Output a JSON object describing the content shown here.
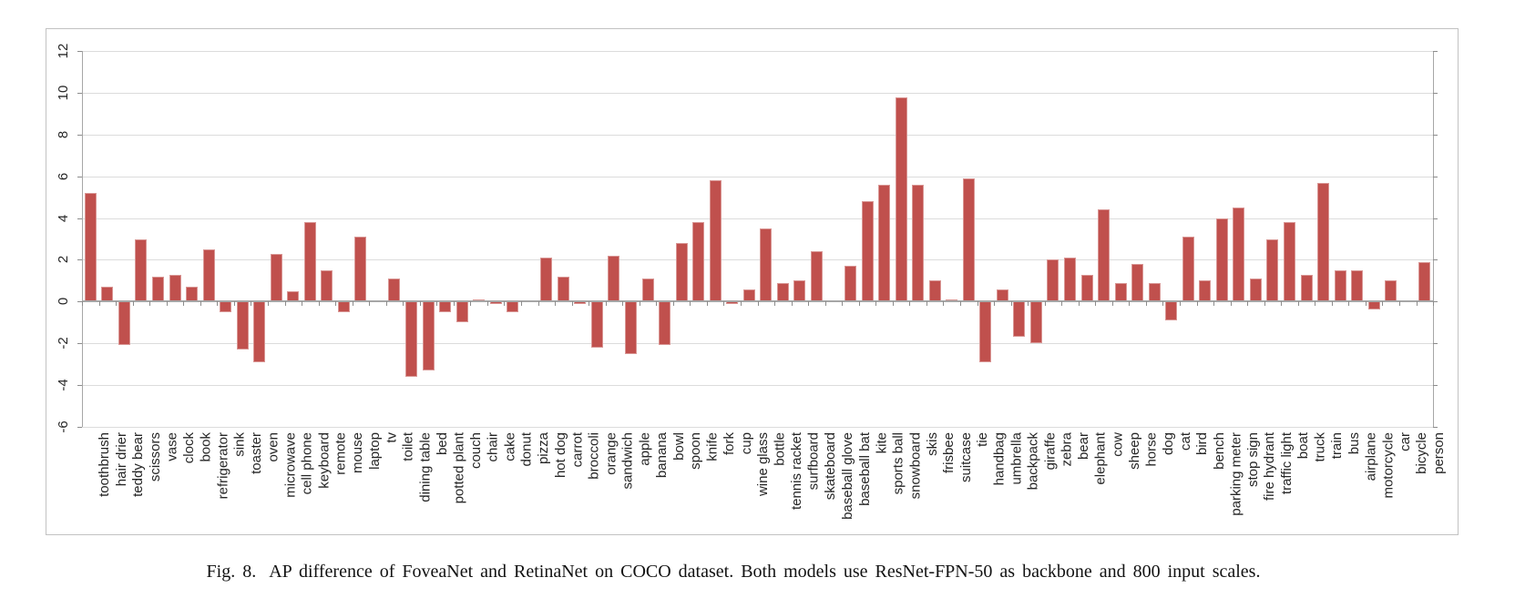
{
  "figure": {
    "caption_label": "Fig. 8.",
    "caption_text": "AP difference of FoveaNet and RetinaNet on COCO dataset. Both models use ResNet-FPN-50 as backbone and 800 input scales."
  },
  "chart_data": {
    "type": "bar",
    "title": "",
    "xlabel": "",
    "ylabel": "",
    "ylim": [
      -6,
      12
    ],
    "yticks": [
      12,
      10,
      8,
      6,
      4,
      2,
      0,
      -2,
      -4,
      -6
    ],
    "grid": true,
    "legend": "none",
    "bar_color": "#c0504d",
    "bar_border_color": "#d99694",
    "gridline_color": "#dcdcdc",
    "axis_color": "#a6a6a6",
    "label_color": "#262626",
    "categories": [
      "toothbrush",
      "hair drier",
      "teddy bear",
      "scissors",
      "vase",
      "clock",
      "book",
      "refrigerator",
      "sink",
      "toaster",
      "oven",
      "microwave",
      "cell phone",
      "keyboard",
      "remote",
      "mouse",
      "laptop",
      "tv",
      "toilet",
      "dining table",
      "bed",
      "potted plant",
      "couch",
      "chair",
      "cake",
      "donut",
      "pizza",
      "hot dog",
      "carrot",
      "broccoli",
      "orange",
      "sandwich",
      "apple",
      "banana",
      "bowl",
      "spoon",
      "knife",
      "fork",
      "cup",
      "wine glass",
      "bottle",
      "tennis racket",
      "surfboard",
      "skateboard",
      "baseball glove",
      "baseball bat",
      "kite",
      "sports ball",
      "snowboard",
      "skis",
      "frisbee",
      "suitcase",
      "tie",
      "handbag",
      "umbrella",
      "backpack",
      "giraffe",
      "zebra",
      "bear",
      "elephant",
      "cow",
      "sheep",
      "horse",
      "dog",
      "cat",
      "bird",
      "bench",
      "parking meter",
      "stop sign",
      "fire hydrant",
      "traffic light",
      "boat",
      "truck",
      "train",
      "bus",
      "airplane",
      "motorcycle",
      "car",
      "bicycle",
      "person"
    ],
    "values": [
      5.2,
      0.7,
      -2.1,
      3.0,
      1.2,
      1.3,
      0.7,
      2.5,
      -0.5,
      -2.3,
      -2.9,
      2.3,
      0.5,
      3.8,
      1.5,
      -0.5,
      3.1,
      0.0,
      1.1,
      -3.6,
      -3.3,
      -0.5,
      -1.0,
      0.1,
      -0.1,
      -0.5,
      0.0,
      2.1,
      1.2,
      -0.1,
      -2.2,
      2.2,
      -2.5,
      1.1,
      -2.1,
      2.8,
      3.8,
      5.8,
      -0.1,
      0.6,
      3.5,
      0.9,
      1.0,
      2.4,
      0.0,
      1.7,
      4.8,
      5.6,
      9.8,
      5.6,
      1.0,
      0.1,
      5.9,
      -2.9,
      0.6,
      -1.7,
      -2.0,
      2.0,
      2.1,
      1.3,
      4.4,
      0.9,
      1.8,
      0.9,
      -0.9,
      3.1,
      1.0,
      4.0,
      4.5,
      1.1,
      3.0,
      3.8,
      1.3,
      5.7,
      1.5,
      1.5,
      -0.4,
      1.0,
      0.0,
      1.9
    ]
  }
}
